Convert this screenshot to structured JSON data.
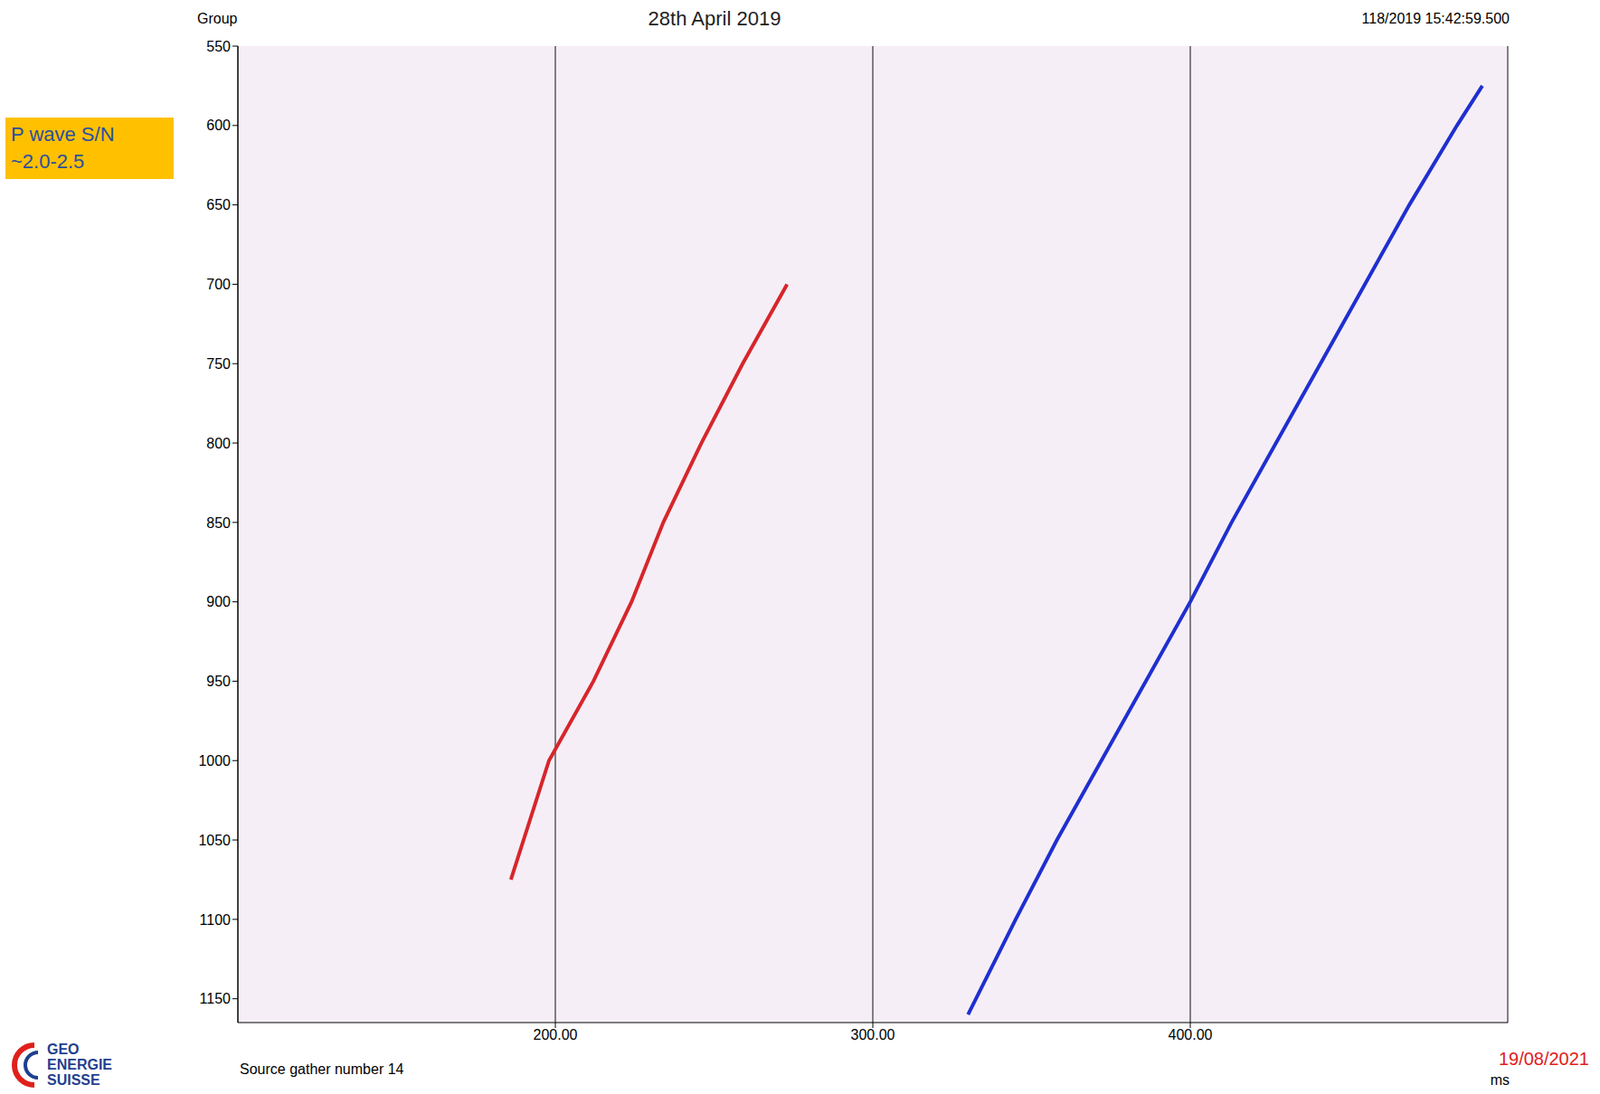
{
  "chart_data": {
    "type": "line",
    "title": "28th April 2019",
    "timestamp": "118/2019 15:42:59.500",
    "xlabel": "ms",
    "ylabel": "Group",
    "xlim": [
      100,
      500
    ],
    "xticks": [
      {
        "value": 200,
        "label": "200.00"
      },
      {
        "value": 300,
        "label": "300.00"
      },
      {
        "value": 400,
        "label": "400.00"
      }
    ],
    "ylim": [
      550,
      1165
    ],
    "yticks": [
      550,
      600,
      650,
      700,
      750,
      800,
      850,
      900,
      950,
      1000,
      1050,
      1100,
      1150
    ],
    "grid": "x",
    "annotation": [
      "P wave S/N",
      "~2.0-2.5"
    ],
    "footer": "Source gather number 14",
    "date": "19/08/2021",
    "logo": [
      "GEO",
      "ENERGIE",
      "SUISSE"
    ],
    "series": [
      {
        "color": "#d6262b",
        "x": [
          186,
          198,
          212,
          224,
          234,
          246,
          259,
          273
        ],
        "values": [
          1075,
          1000,
          950,
          900,
          850,
          800,
          750,
          700
        ]
      },
      {
        "color": "#1f2fd0",
        "x": [
          330,
          345,
          358,
          372,
          386,
          400,
          413,
          427,
          441,
          455,
          469,
          484,
          492
        ],
        "values": [
          1160,
          1100,
          1050,
          1000,
          950,
          900,
          850,
          800,
          750,
          700,
          650,
          600,
          575
        ]
      }
    ]
  }
}
